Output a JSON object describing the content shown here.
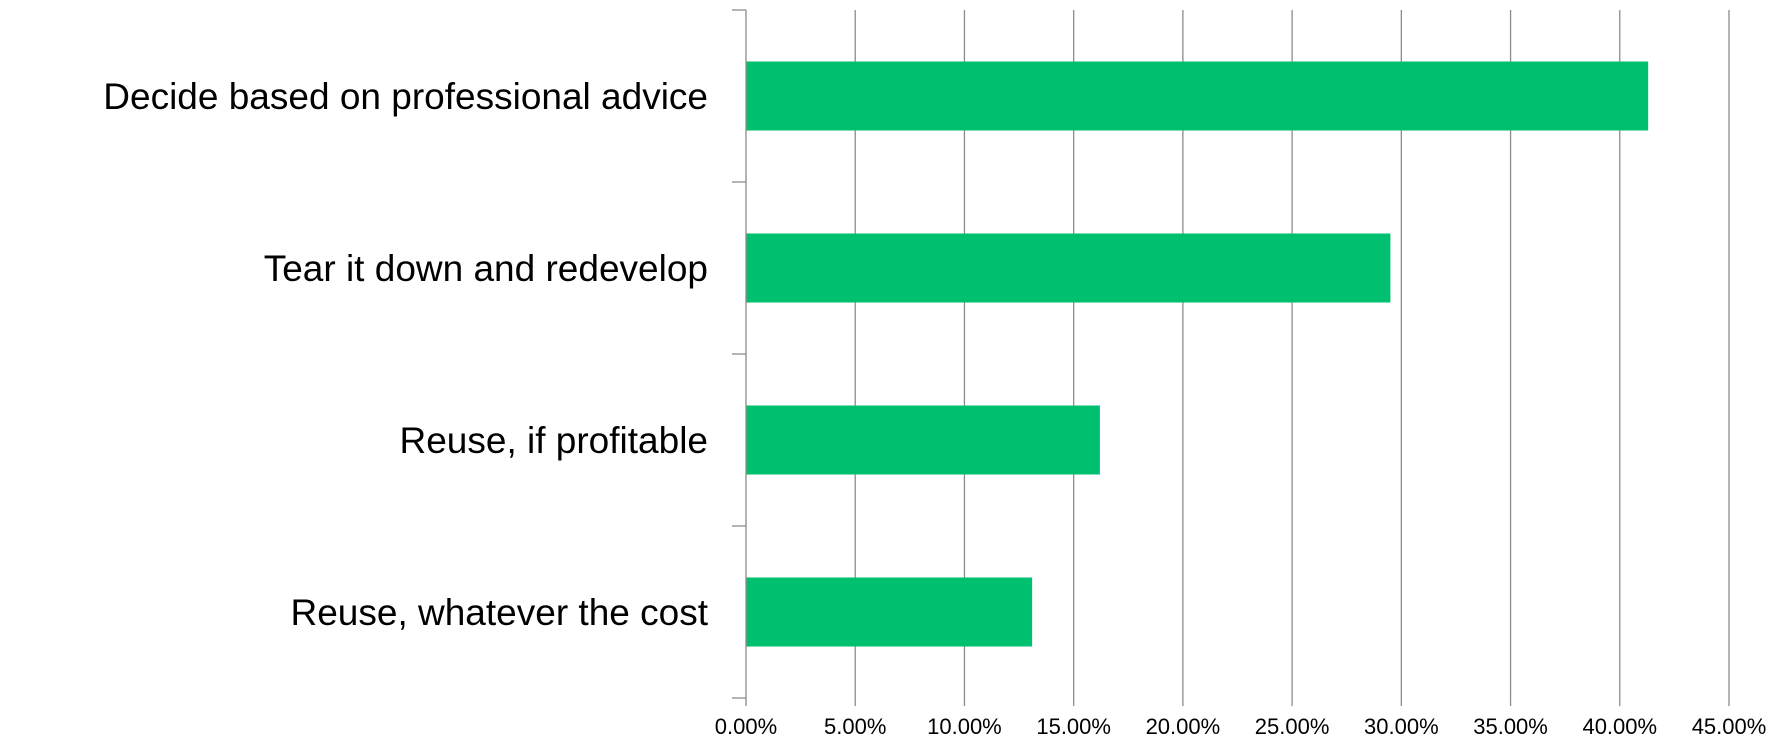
{
  "chart_data": {
    "type": "bar",
    "orientation": "horizontal",
    "title": "",
    "xlabel": "",
    "ylabel": "",
    "categories": [
      "Decide based on professional advice",
      "Tear it down and redevelop",
      "Reuse, if profitable",
      "Reuse, whatever the cost"
    ],
    "values": [
      41.3,
      29.5,
      16.2,
      13.1
    ],
    "xlim": [
      0,
      45
    ],
    "x_ticks": [
      0,
      5,
      10,
      15,
      20,
      25,
      30,
      35,
      40,
      45
    ],
    "x_tick_labels": [
      "0.00%",
      "5.00%",
      "10.00%",
      "15.00%",
      "20.00%",
      "25.00%",
      "30.00%",
      "35.00%",
      "40.00%",
      "45.00%"
    ],
    "grid": "vertical",
    "legend": "none",
    "colors": {
      "bar": "#00bf6f",
      "grid": "#8c8c8c",
      "text": "#000000"
    }
  }
}
